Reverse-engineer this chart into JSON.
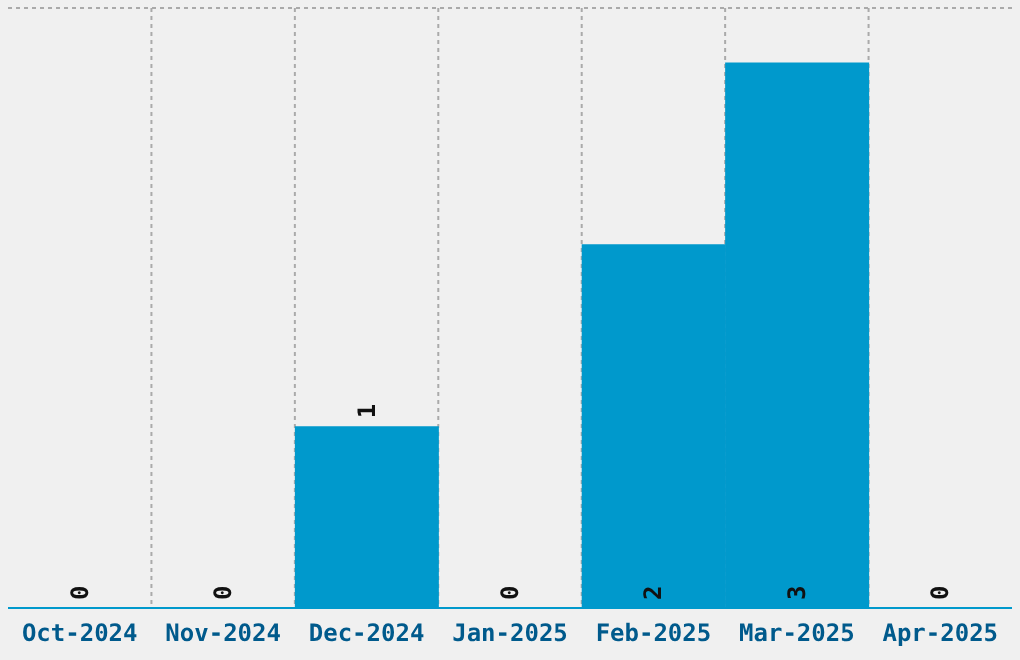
{
  "chart_data": {
    "type": "bar",
    "categories": [
      "Oct-2024",
      "Nov-2024",
      "Dec-2024",
      "Jan-2025",
      "Feb-2025",
      "Mar-2025",
      "Apr-2025"
    ],
    "values": [
      0,
      0,
      1,
      0,
      2,
      3,
      0
    ],
    "color": "#0099cc",
    "data_labels": true,
    "grid": true,
    "tick_labels": "x",
    "ylim": [
      0,
      3.3
    ]
  }
}
